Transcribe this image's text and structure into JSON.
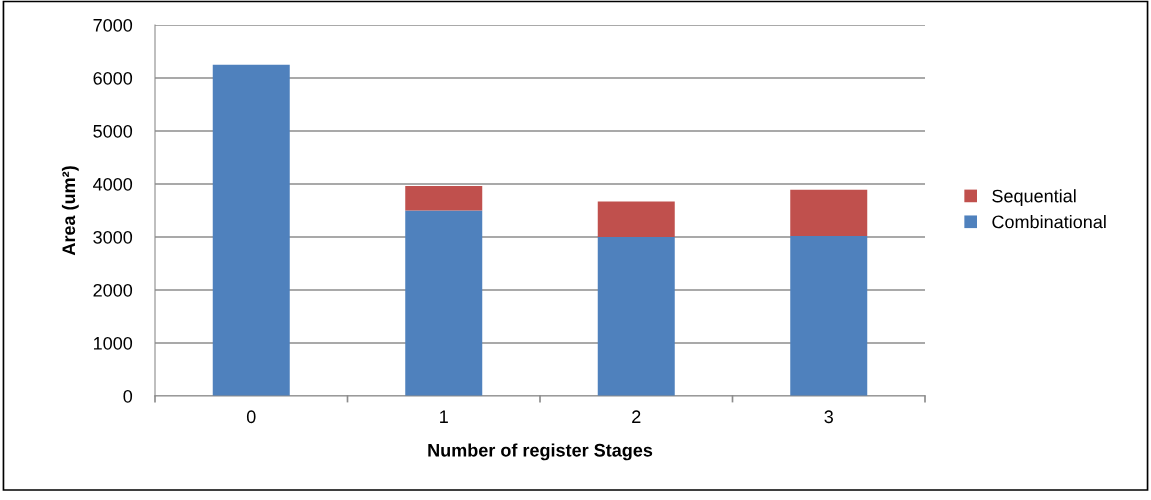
{
  "chart_data": {
    "type": "bar",
    "stacked": true,
    "xlabel": "Number of register Stages",
    "ylabel": "Area (um²)",
    "categories": [
      "0",
      "1",
      "2",
      "3"
    ],
    "series": [
      {
        "name": "Combinational",
        "color": "#4f81bd",
        "values": [
          6250,
          3500,
          3000,
          3020
        ]
      },
      {
        "name": "Sequential",
        "color": "#c0504d",
        "values": [
          0,
          460,
          670,
          870
        ]
      }
    ],
    "ylim": [
      0,
      7000
    ],
    "yticks": [
      0,
      1000,
      2000,
      3000,
      4000,
      5000,
      6000,
      7000
    ],
    "grid": "y",
    "legend": "right"
  }
}
